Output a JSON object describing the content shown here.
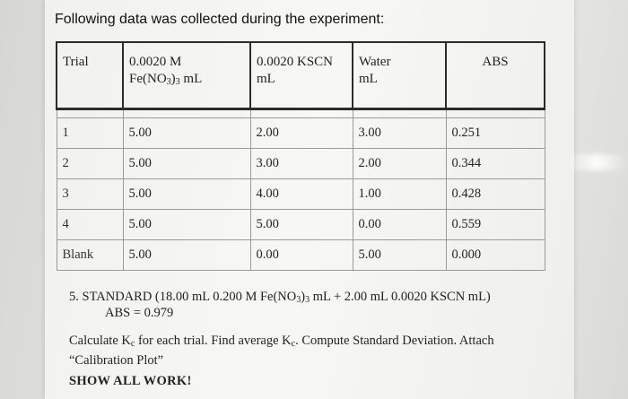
{
  "heading": "Following data was collected during the experiment:",
  "table": {
    "headers": {
      "trial": "Trial",
      "fe_line1": "0.0020 M",
      "fe_line2_pre": "Fe(NO",
      "fe_sub1": "3",
      "fe_mid": ")",
      "fe_sub2": "3",
      "fe_post": " mL",
      "kscn_line1": "0.0020 KSCN",
      "kscn_line2": "mL",
      "water_line1": "Water",
      "water_line2": "mL",
      "abs": "ABS"
    },
    "rows": [
      {
        "trial": "1",
        "fe": "5.00",
        "kscn": "2.00",
        "water": "3.00",
        "abs": "0.251"
      },
      {
        "trial": "2",
        "fe": "5.00",
        "kscn": "3.00",
        "water": "2.00",
        "abs": "0.344"
      },
      {
        "trial": "3",
        "fe": "5.00",
        "kscn": "4.00",
        "water": "1.00",
        "abs": "0.428"
      },
      {
        "trial": "4",
        "fe": "5.00",
        "kscn": "5.00",
        "water": "0.00",
        "abs": "0.559"
      },
      {
        "trial": "Blank",
        "fe": "5.00",
        "kscn": "0.00",
        "water": "5.00",
        "abs": "0.000"
      }
    ]
  },
  "standard": {
    "pre": "5. STANDARD (18.00 mL 0.200 M Fe(NO",
    "sub1": "3",
    "mid": ")",
    "sub2": "3",
    "post": " mL + 2.00 mL 0.0020 KSCN mL)",
    "abs": "ABS = 0.979"
  },
  "task": {
    "pre": "Calculate K",
    "sub1": "c",
    "mid": " for each trial. Find average K",
    "sub2": "c",
    "post": ". Compute Standard Deviation. Attach “Calibration Plot”"
  },
  "show_work": "SHOW ALL WORK!"
}
